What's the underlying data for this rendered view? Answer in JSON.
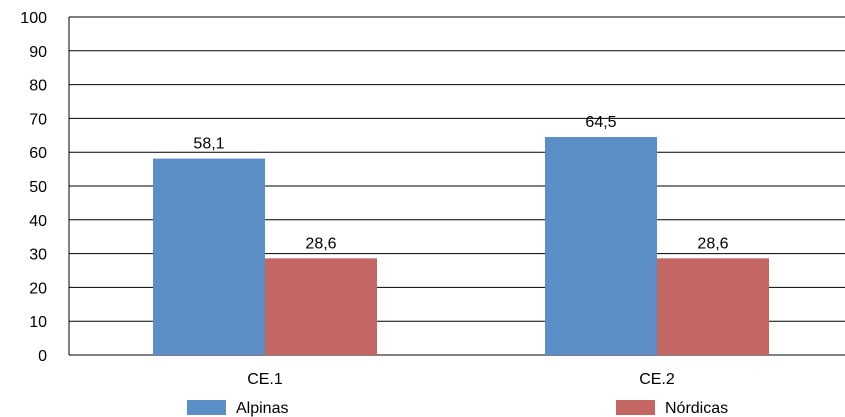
{
  "chart_data": {
    "type": "bar",
    "categories": [
      "CE.1",
      "CE.2"
    ],
    "series": [
      {
        "name": "Alpinas",
        "values": [
          58.1,
          64.5
        ],
        "labels": [
          "58,1",
          "64,5"
        ],
        "color": "#5b8ec6"
      },
      {
        "name": "Nórdicas",
        "values": [
          28.6,
          28.6
        ],
        "labels": [
          "28,6",
          "28,6"
        ],
        "color": "#c46663"
      }
    ],
    "ylim": [
      0,
      100
    ],
    "yticks": [
      0,
      10,
      20,
      30,
      40,
      50,
      60,
      70,
      80,
      90,
      100
    ],
    "grid": true,
    "legend_position": "bottom",
    "title": "",
    "xlabel": "",
    "ylabel": ""
  }
}
